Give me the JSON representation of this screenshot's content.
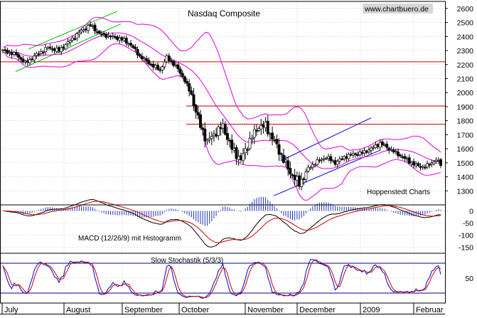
{
  "colors": {
    "background": "#ffffff",
    "frame": "#000000",
    "grid": "#b8b8b8",
    "candle": "#000000",
    "bollinger": "#e000e0",
    "resistance": "#cc0000",
    "channel_up": "#00bb00",
    "channel_blue": "#0000cc",
    "macd_line": "#000000",
    "macd_signal": "#cc0000",
    "histogram": "#2233bb",
    "stoch_k": "#0000cc",
    "stoch_d": "#cc0000",
    "stoch_bands": "#000088"
  },
  "chart_data": {
    "type": "candlestick",
    "title": "Nasdaq Composite",
    "source_label": "www.chartbuero.de",
    "credit": "Hoppenstedt Charts",
    "x_labels": [
      "July",
      "August",
      "September",
      "October",
      "November",
      "December",
      "2009",
      "Februar"
    ],
    "price_panel": {
      "ylim": [
        1200,
        2650
      ],
      "ticks": [
        1300,
        1400,
        1500,
        1600,
        1700,
        1800,
        1900,
        2000,
        2100,
        2200,
        2300,
        2400,
        2500,
        2600
      ],
      "resistance_lines": [
        2220,
        1905,
        1775
      ],
      "indicators": [
        "Bollinger Bands"
      ]
    },
    "macd_panel": {
      "label": "MACD (12/26/9) mit Histogramm",
      "ticks": [
        0,
        -50,
        -100,
        -150
      ],
      "ylim": [
        -175,
        25
      ]
    },
    "stochastic_panel": {
      "label": "Slow Stochastik (5/3/3)",
      "ticks": [
        50
      ],
      "bands": [
        80,
        20
      ],
      "ylim": [
        0,
        100
      ]
    },
    "series": [
      {
        "name": "Nasdaq Composite close",
        "anchors": [
          [
            0,
            2300
          ],
          [
            6,
            2270
          ],
          [
            10,
            2210
          ],
          [
            15,
            2270
          ],
          [
            20,
            2320
          ],
          [
            25,
            2300
          ],
          [
            30,
            2370
          ],
          [
            35,
            2440
          ],
          [
            39,
            2480
          ],
          [
            43,
            2420
          ],
          [
            48,
            2400
          ],
          [
            53,
            2380
          ],
          [
            57,
            2340
          ],
          [
            61,
            2260
          ],
          [
            66,
            2200
          ],
          [
            70,
            2160
          ],
          [
            73,
            2250
          ],
          [
            77,
            2190
          ],
          [
            81,
            2090
          ],
          [
            84,
            1980
          ],
          [
            88,
            1760
          ],
          [
            91,
            1650
          ],
          [
            95,
            1720
          ],
          [
            98,
            1760
          ],
          [
            102,
            1600
          ],
          [
            106,
            1520
          ],
          [
            110,
            1660
          ],
          [
            114,
            1760
          ],
          [
            117,
            1760
          ],
          [
            121,
            1650
          ],
          [
            125,
            1520
          ],
          [
            128,
            1430
          ],
          [
            132,
            1350
          ],
          [
            136,
            1460
          ],
          [
            140,
            1510
          ],
          [
            144,
            1540
          ],
          [
            148,
            1500
          ],
          [
            152,
            1540
          ],
          [
            156,
            1560
          ],
          [
            160,
            1570
          ],
          [
            164,
            1600
          ],
          [
            168,
            1640
          ],
          [
            172,
            1600
          ],
          [
            176,
            1560
          ],
          [
            180,
            1520
          ],
          [
            184,
            1480
          ],
          [
            188,
            1470
          ],
          [
            191,
            1500
          ],
          [
            193,
            1520
          ],
          [
            195,
            1490
          ]
        ]
      }
    ]
  }
}
